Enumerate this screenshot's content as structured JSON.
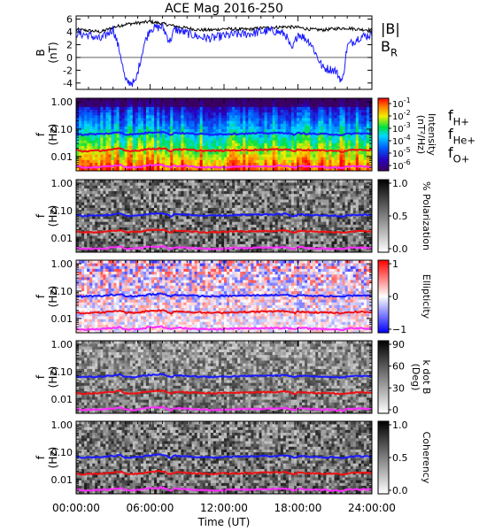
{
  "chart_data": [
    {
      "type": "line",
      "title": "ACE Mag 2016-250",
      "ylabel": "B",
      "yunit": "(nT)",
      "ylim": [
        -5,
        6.5
      ],
      "yticks": [
        "6",
        "4",
        "2",
        "0",
        "-2",
        "-4"
      ],
      "legend": [
        {
          "name": "|B|",
          "color": "#000000"
        },
        {
          "name": "B",
          "sub": "R",
          "color": "#1a1aff"
        }
      ],
      "series": [
        {
          "name": "|B|",
          "color": "#000000",
          "x": [
            0,
            1,
            2,
            3,
            4,
            5,
            6,
            7,
            8,
            9,
            10,
            11,
            12,
            13,
            14,
            15,
            16,
            17,
            18,
            19,
            20,
            21,
            22,
            23,
            24
          ],
          "y": [
            4.4,
            4.2,
            4.0,
            4.7,
            5.2,
            5.4,
            5.6,
            5.3,
            4.9,
            4.6,
            4.3,
            4.3,
            4.5,
            4.4,
            4.4,
            4.6,
            4.7,
            4.8,
            4.7,
            4.4,
            4.3,
            4.5,
            4.6,
            4.4,
            4.3
          ]
        },
        {
          "name": "B_R",
          "color": "#1a1aff",
          "x": [
            0,
            1,
            2,
            3,
            3.6,
            4,
            4.8,
            5.5,
            6,
            7,
            7.6,
            8,
            9,
            10,
            11,
            12,
            13,
            14,
            15,
            16,
            17,
            17.5,
            18,
            19,
            20,
            21,
            21.6,
            22,
            23,
            24
          ],
          "y": [
            3.8,
            3.5,
            2.8,
            4.5,
            0.5,
            -3.8,
            -4.0,
            2.0,
            4.5,
            4.8,
            2.5,
            4.4,
            3.8,
            3.2,
            3.0,
            3.4,
            3.6,
            3.7,
            4.0,
            4.2,
            3.6,
            1.0,
            3.8,
            2.4,
            -1.6,
            -2.0,
            -3.8,
            1.8,
            3.2,
            3.6
          ]
        }
      ]
    },
    {
      "type": "heatmap",
      "name": "Intensity",
      "ylabel": "f",
      "yunit": "(Hz)",
      "yticks": [
        "1.00",
        "0.10",
        "0.01"
      ],
      "colorbar": {
        "scale": "log",
        "ticks": [
          "10",
          "10",
          "10",
          "10",
          "10",
          "10"
        ],
        "tick_exps": [
          "-1",
          "-2",
          "-3",
          "-4",
          "-5",
          "-6"
        ],
        "label": "Intensity",
        "unit": "(nT²/Hz)"
      },
      "legend": [
        {
          "name": "f",
          "sub": "H+",
          "color": "#1a1aff"
        },
        {
          "name": "f",
          "sub": "He+",
          "color": "#ee1111"
        },
        {
          "name": "f",
          "sub": "O+",
          "color": "#ff2bff"
        }
      ]
    },
    {
      "type": "heatmap",
      "name": "% Polarization",
      "ylabel": "f",
      "yunit": "(Hz)",
      "yticks": [
        "1.00",
        "0.10",
        "0.01"
      ],
      "colorbar": {
        "ticks": [
          "1.0",
          "0.5",
          "0.0"
        ],
        "label": "% Polarization"
      }
    },
    {
      "type": "heatmap",
      "name": "Ellipticity",
      "ylabel": "f",
      "yunit": "(Hz)",
      "yticks": [
        "1.00",
        "0.10",
        "0.01"
      ],
      "colorbar": {
        "ticks": [
          "1",
          "0",
          "−1"
        ],
        "label": "Ellipticity"
      }
    },
    {
      "type": "heatmap",
      "name": "k dot B",
      "ylabel": "f",
      "yunit": "(Hz)",
      "yticks": [
        "1.00",
        "0.10",
        "0.01"
      ],
      "colorbar": {
        "ticks": [
          "90",
          "60",
          "30",
          "0"
        ],
        "label": "k dot B",
        "unit": "(Deg)"
      }
    },
    {
      "type": "heatmap",
      "name": "Coherency",
      "ylabel": "f",
      "yunit": "(Hz)",
      "yticks": [
        "1.00",
        "0.10",
        "0.01"
      ],
      "colorbar": {
        "ticks": [
          "1.0",
          "0.5",
          "0.0"
        ],
        "label": "Coherency"
      }
    }
  ],
  "gyrofrequencies": {
    "x": [
      0,
      0.5,
      1,
      2,
      3,
      3.6,
      4,
      5,
      6,
      7,
      7.7,
      8,
      9,
      10,
      11,
      12,
      13,
      14,
      15,
      16,
      17,
      17.8,
      18,
      19,
      20,
      21,
      21.7,
      22,
      23,
      24
    ],
    "H": [
      0.07,
      0.062,
      0.065,
      0.066,
      0.072,
      0.078,
      0.064,
      0.066,
      0.076,
      0.08,
      0.062,
      0.074,
      0.07,
      0.066,
      0.064,
      0.066,
      0.068,
      0.069,
      0.071,
      0.072,
      0.074,
      0.062,
      0.072,
      0.068,
      0.066,
      0.065,
      0.06,
      0.068,
      0.07,
      0.068
    ],
    "He": [
      0.0175,
      0.0155,
      0.016,
      0.0165,
      0.018,
      0.0195,
      0.016,
      0.0165,
      0.019,
      0.02,
      0.0155,
      0.0185,
      0.0175,
      0.0165,
      0.016,
      0.0165,
      0.017,
      0.0172,
      0.0178,
      0.018,
      0.0185,
      0.0155,
      0.018,
      0.017,
      0.0165,
      0.0162,
      0.015,
      0.017,
      0.0175,
      0.017
    ],
    "O": [
      0.0044,
      0.0039,
      0.004,
      0.0041,
      0.0045,
      0.0049,
      0.004,
      0.0041,
      0.0048,
      0.005,
      0.0039,
      0.0046,
      0.0044,
      0.0041,
      0.004,
      0.0041,
      0.0043,
      0.0043,
      0.0044,
      0.0045,
      0.0046,
      0.0039,
      0.0045,
      0.0043,
      0.0041,
      0.004,
      0.0038,
      0.0043,
      0.0044,
      0.0043
    ]
  },
  "time_axis": {
    "label": "Time (UT)",
    "ticks": [
      "00:00:00",
      "06:00:00",
      "12:00:00",
      "18:00:00",
      "24:00:00"
    ],
    "range_hours": [
      0,
      24
    ]
  }
}
